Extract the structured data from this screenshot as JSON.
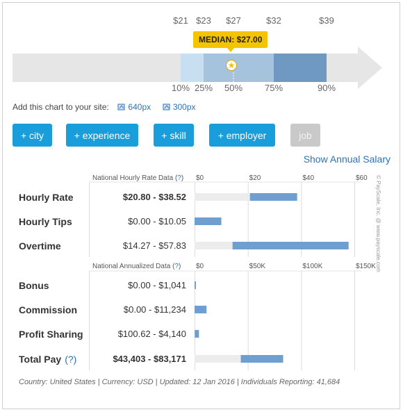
{
  "colors": {
    "accent": "#1a9edb",
    "link": "#2a73b8",
    "median_badge": "#f5c400",
    "range_light": "#c7dff0",
    "range_mid": "#a5c3dd",
    "range_dark": "#6f99c0",
    "bar_blue": "#6f9fd0",
    "bar_bg": "#ececec"
  },
  "add_chart": {
    "label": "Add this chart to your site:",
    "link_640": "640px",
    "link_300": "300px"
  },
  "filters": {
    "city": "+ city",
    "experience": "+ experience",
    "skill": "+ skill",
    "employer": "+ employer",
    "job": "job"
  },
  "show_annual": "Show Annual Salary",
  "hourly_header": {
    "text": "National Hourly Rate Data (",
    "q": "?",
    "close": ")"
  },
  "annual_header": {
    "text": "National Annualized Data (",
    "q": "?",
    "close": ")"
  },
  "watermark": "© PayScale, Inc. @ www.payscale.com",
  "footer": "Country: United States | Currency: USD | Updated: 12 Jan 2016 | Individuals Reporting: 41,684",
  "chart_data": [
    {
      "type": "bar",
      "title": "",
      "percentiles": [
        "10%",
        "25%",
        "50%",
        "75%",
        "90%"
      ],
      "values": [
        21,
        23,
        27,
        32,
        39
      ],
      "value_labels": [
        "$21",
        "$23",
        "$27",
        "$32",
        "$39"
      ],
      "median_label": "MEDIAN: $27.00"
    },
    {
      "type": "bar",
      "title": "National Hourly Rate Data (?)",
      "xlim": [
        0,
        60
      ],
      "ticks": [
        {
          "value": 0,
          "label": "$0"
        },
        {
          "value": 20,
          "label": "$20"
        },
        {
          "value": 40,
          "label": "$40"
        },
        {
          "value": 60,
          "label": "$60"
        }
      ],
      "rows": [
        {
          "label": "Hourly Rate",
          "display": "$20.80 - $38.52",
          "low": 20.8,
          "high": 38.52,
          "max_bg": 38.52,
          "bold": true
        },
        {
          "label": "Hourly Tips",
          "display": "$0.00 - $10.05",
          "low": 0,
          "high": 10.05,
          "max_bg": 10.05,
          "bold": false
        },
        {
          "label": "Overtime",
          "display": "$14.27 - $57.83",
          "low": 14.27,
          "high": 57.83,
          "max_bg": 57.83,
          "bold": false
        }
      ]
    },
    {
      "type": "bar",
      "title": "National Annualized Data (?)",
      "xlim": [
        0,
        150000
      ],
      "ticks": [
        {
          "value": 0,
          "label": "$0"
        },
        {
          "value": 50000,
          "label": "$50K"
        },
        {
          "value": 100000,
          "label": "$100K"
        },
        {
          "value": 150000,
          "label": "$150K"
        }
      ],
      "rows": [
        {
          "label": "Bonus",
          "display": "$0.00 - $1,041",
          "low": 0,
          "high": 1041,
          "max_bg": 1041,
          "bold": false,
          "suffix": ""
        },
        {
          "label": "Commission",
          "display": "$0.00 - $11,234",
          "low": 0,
          "high": 11234,
          "max_bg": 11234,
          "bold": false,
          "suffix": ""
        },
        {
          "label": "Profit Sharing",
          "display": "$100.62 - $4,140",
          "low": 100.62,
          "high": 4140,
          "max_bg": 4140,
          "bold": false,
          "suffix": ""
        },
        {
          "label": "Total Pay",
          "display": "$43,403 - $83,171",
          "low": 43403,
          "high": 83171,
          "max_bg": 83171,
          "bold": true,
          "suffix": "(?)"
        }
      ]
    }
  ]
}
